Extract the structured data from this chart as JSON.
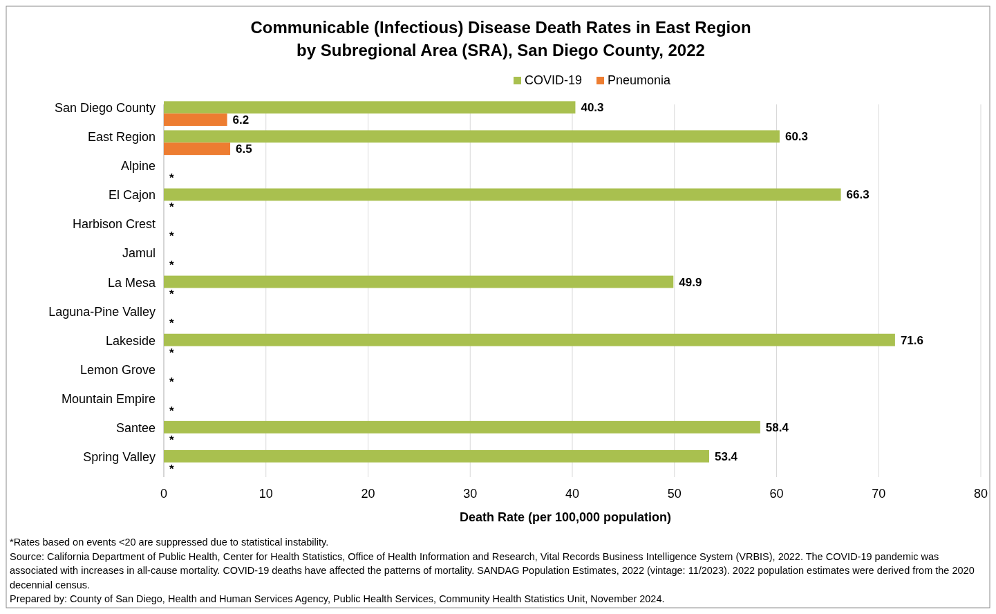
{
  "chart_data": {
    "type": "bar",
    "orientation": "horizontal",
    "title": "Communicable (Infectious) Disease Death Rates in East Region\nby Subregional Area (SRA), San Diego County, 2022",
    "xlabel": "Death Rate (per 100,000 population)",
    "categories": [
      "San Diego County",
      "East Region",
      "Alpine",
      "El Cajon",
      "Harbison Crest",
      "Jamul",
      "La Mesa",
      "Laguna-Pine Valley",
      "Lakeside",
      "Lemon Grove",
      "Mountain Empire",
      "Santee",
      "Spring Valley"
    ],
    "series": [
      {
        "name": "COVID-19",
        "color": "#a9c04f",
        "values": [
          40.3,
          60.3,
          null,
          66.3,
          null,
          null,
          49.9,
          null,
          71.6,
          null,
          null,
          58.4,
          53.4
        ],
        "value_labels": [
          "40.3",
          "60.3",
          null,
          "66.3",
          null,
          null,
          "49.9",
          null,
          "71.6",
          null,
          null,
          "58.4",
          "53.4"
        ]
      },
      {
        "name": "Pneumonia",
        "color": "#ed7d31",
        "values": [
          6.2,
          6.5,
          null,
          null,
          null,
          null,
          null,
          null,
          null,
          null,
          null,
          null,
          null
        ],
        "value_labels": [
          "6.2",
          "6.5",
          "*",
          "*",
          "*",
          "*",
          "*",
          "*",
          "*",
          "*",
          "*",
          "*",
          "*"
        ]
      }
    ],
    "xlim": [
      0,
      80
    ],
    "xticks": [
      0,
      10,
      20,
      30,
      40,
      50,
      60,
      70,
      80
    ],
    "grid": "x",
    "legend": "top",
    "annotations": [
      "*Rates based on events <20 are suppressed due to statistical instability.",
      "Source: California Department of Public Health, Center for Health Statistics, Office of Health Information and Research, Vital Records Business Intelligence System (VRBIS), 2022. The COVID-19 pandemic was associated with increases in all-cause mortality. COVID-19 deaths have affected the patterns of mortality. SANDAG Population Estimates, 2022 (vintage: 11/2023). 2022 population estimates were derived from the 2020 decennial census.",
      "Prepared by: County of San Diego, Health and Human Services Agency, Public Health Services, Community Health Statistics Unit, November 2024."
    ]
  }
}
